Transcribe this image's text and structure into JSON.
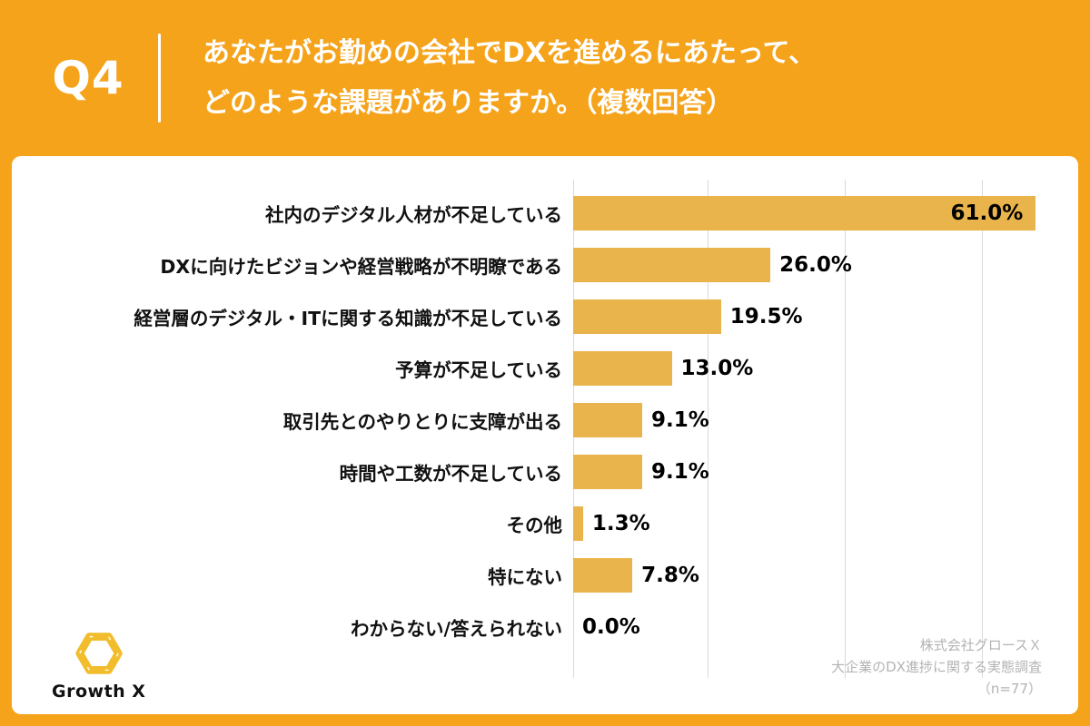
{
  "header": {
    "q_label": "Q4",
    "title_line1": "あなたがお勤めの会社でDXを進めるにあたって、",
    "title_line2": "どのような課題がありますか。（複数回答）"
  },
  "chart_data": {
    "type": "bar",
    "orientation": "horizontal",
    "title": "あなたがお勤めの会社でDXを進めるにあたって、どのような課題がありますか。（複数回答）",
    "categories": [
      "社内のデジタル人材が不足している",
      "DXに向けたビジョンや経営戦略が不明瞭である",
      "経営層のデジタル・ITに関する知識が不足している",
      "予算が不足している",
      "取引先とのやりとりに支障が出る",
      "時間や工数が不足している",
      "その他",
      "特にない",
      "わからない/答えられない"
    ],
    "values": [
      61.0,
      26.0,
      19.5,
      13.0,
      9.1,
      9.1,
      1.3,
      7.8,
      0.0
    ],
    "value_labels": [
      "61.0%",
      "26.0%",
      "19.5%",
      "13.0%",
      "9.1%",
      "9.1%",
      "1.3%",
      "7.8%",
      "0.0%"
    ],
    "xlabel": "",
    "ylabel": "",
    "xlim": [
      0,
      63
    ],
    "grid": true,
    "legend": "none",
    "bar_color": "#E9B44C",
    "sample_size": "n=77"
  },
  "footer": {
    "logo_text": "Growth X",
    "source_line1": "株式会社グロースＸ",
    "source_line2": "大企業のDX進捗に関する実態調査",
    "source_line3": "（n=77）"
  },
  "colors": {
    "header_bg": "#F5A31B",
    "bar": "#E9B44C",
    "logo_yellow": "#F2BD2D",
    "source_text": "#b3b3b3"
  }
}
